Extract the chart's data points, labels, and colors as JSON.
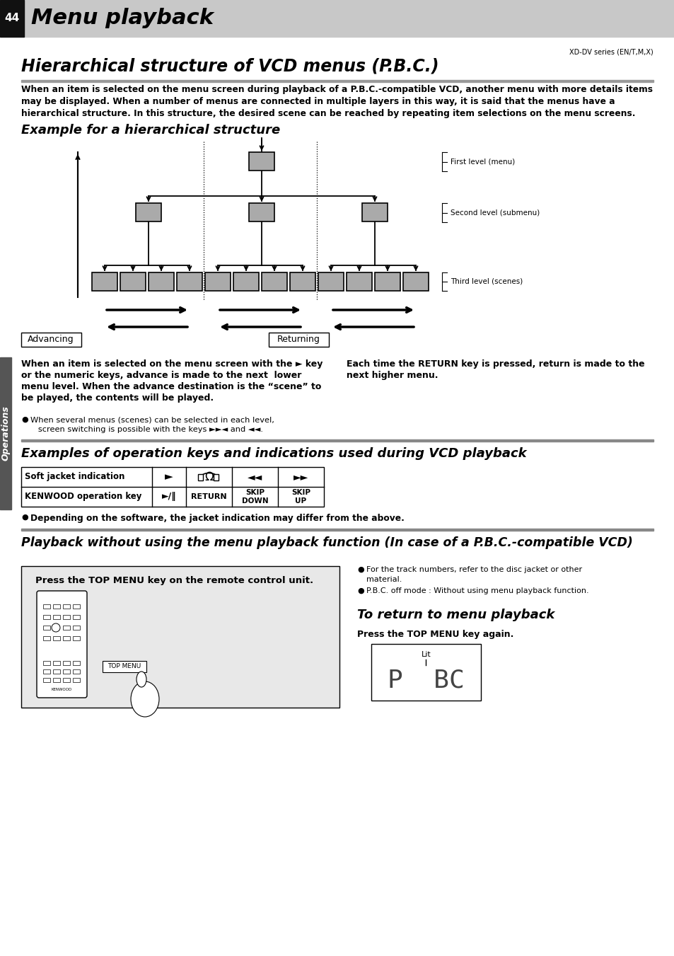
{
  "page_num": "44",
  "header_title": "Menu playback",
  "model": "XD-DV series (EN/T,M,X)",
  "section1_title": "Hierarchical structure of VCD menus (P.B.C.)",
  "section1_body_line1": "When an item is selected on the menu screen during playback of a P.B.C.-compatible VCD, another menu with more details items",
  "section1_body_line2": "may be displayed. When a number of menus are connected in multiple layers in this way, it is said that the menus have a",
  "section1_body_line3": "hierarchical structure. In this structure, the desired scene can be reached by repeating item selections on the menu screens.",
  "subsection1_title": "Example for a hierarchical structure",
  "level_labels": [
    "First level (menu)",
    "Second level (submenu)",
    "Third level (scenes)"
  ],
  "advancing_label": "Advancing",
  "returning_label": "Returning",
  "adv_text_line1": "When an item is selected on the menu screen with the ► key",
  "adv_text_line2": "or the numeric keys, advance is made to the next  lower",
  "adv_text_line3": "menu level. When the advance destination is the “scene” to",
  "adv_text_line4": "be played, the contents will be played.",
  "ret_text_line1": "Each time the RETURN key is pressed, return is made to the",
  "ret_text_line2": "next higher menu.",
  "bullet1_line1": "When several menus (scenes) can be selected in each level,",
  "bullet1_line2": "   screen switching is possible with the keys ►►◄ and ◄◄.",
  "section2_title": "Examples of operation keys and indications used during VCD playback",
  "table_col1_r1": "Soft jacket indication",
  "table_col1_r2": "KENWOOD operation key",
  "table_r2_c2": "►/‖",
  "table_r2_c3": "RETURN",
  "table_r2_c4": "SKIP\nDOWN",
  "table_r2_c5": "SKIP\nUP",
  "bullet2": "Depending on the software, the jacket indication may differ from the above.",
  "section3_title": "Playback without using the menu playback function (In case of a P.B.C.-compatible VCD)",
  "press_box_text": "Press the TOP MENU key on the remote control unit.",
  "bullet3a_line1": "For the track numbers, refer to the disc jacket or other",
  "bullet3a_line2": "material.",
  "bullet3b": "P.B.C. off mode : Without using menu playback function.",
  "return_subtitle": "To return to menu playback",
  "return_text": "Press the TOP MENU key again.",
  "lit_label": "Lit",
  "bg_color": "#ffffff",
  "header_bg": "#c8c8c8",
  "box_color": "#aaaaaa",
  "ops_bg": "#555555",
  "section3_inner_bg": "#e8e8e8"
}
